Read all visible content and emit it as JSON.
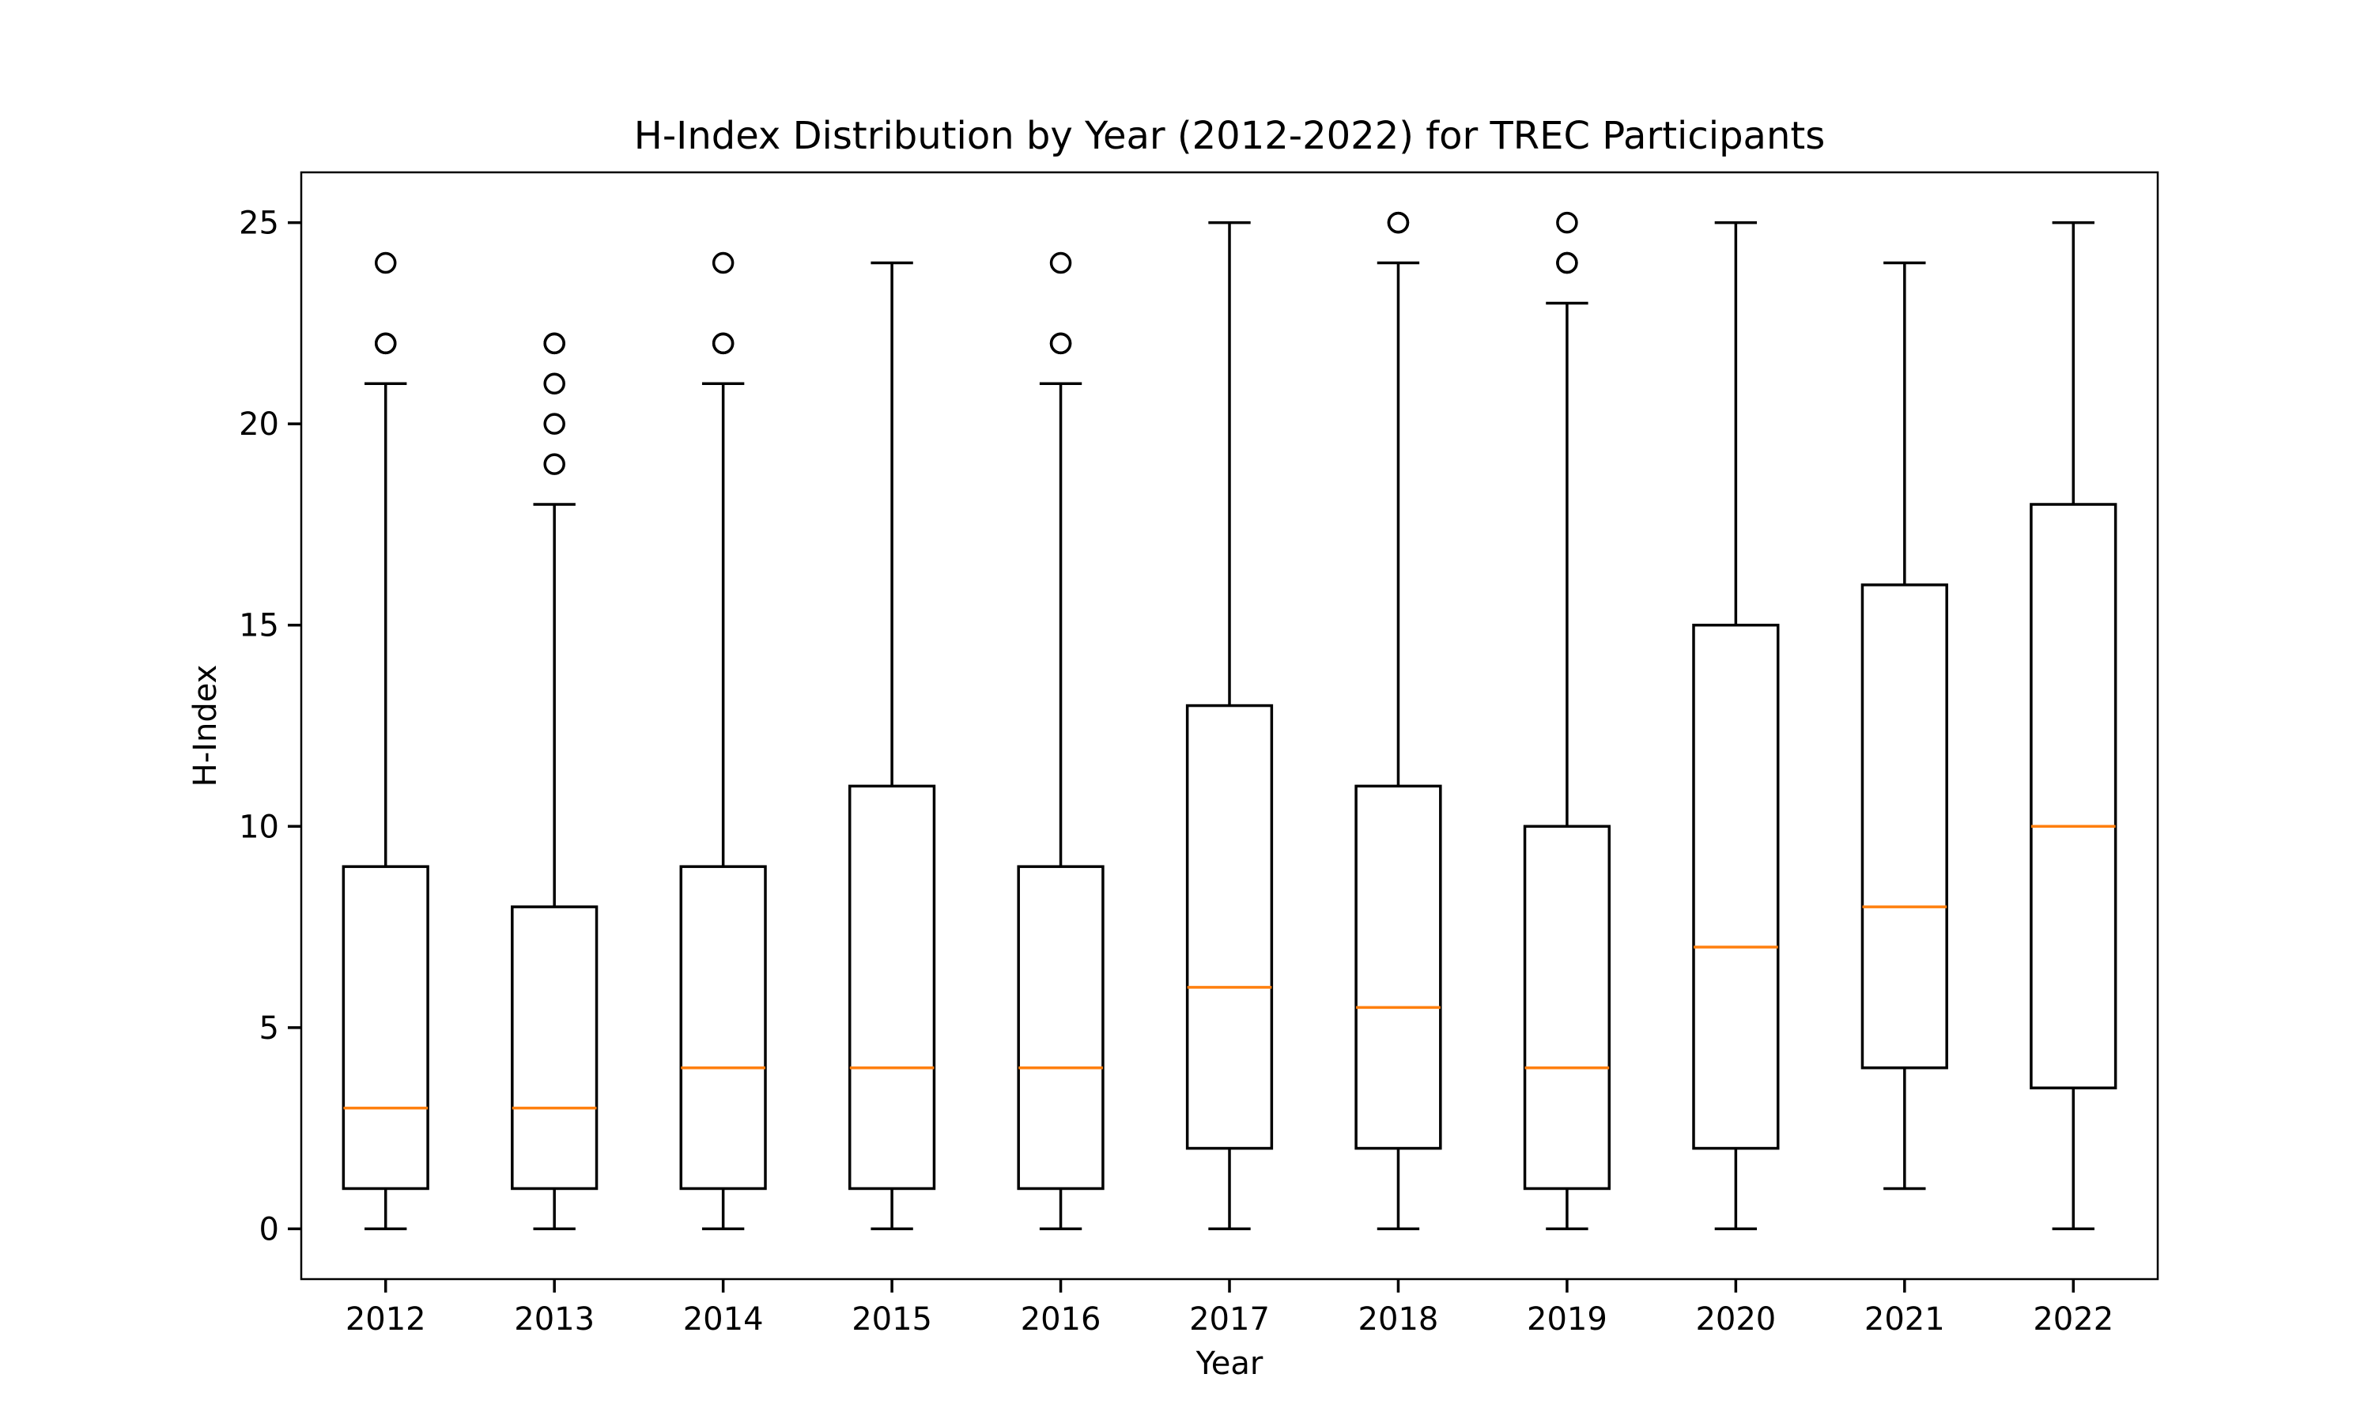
{
  "chart_data": {
    "type": "boxplot",
    "title": "H-Index Distribution by Year (2012-2022) for TREC Participants",
    "xlabel": "Year",
    "ylabel": "H-Index",
    "ylim": [
      -1.25,
      26.25
    ],
    "yticks": [
      0,
      5,
      10,
      15,
      20,
      25
    ],
    "ytick_labels": [
      "0",
      "5",
      "10",
      "15",
      "20",
      "25"
    ],
    "grid": false,
    "colors": {
      "box": "#000000",
      "median": "#ff7f0e"
    },
    "categories": [
      "2012",
      "2013",
      "2014",
      "2015",
      "2016",
      "2017",
      "2018",
      "2019",
      "2020",
      "2021",
      "2022"
    ],
    "boxes": [
      {
        "category": "2012",
        "whisker_low": 0,
        "q1": 1,
        "median": 3,
        "q3": 9,
        "whisker_high": 21,
        "outliers": [
          22,
          22,
          24
        ]
      },
      {
        "category": "2013",
        "whisker_low": 0,
        "q1": 1,
        "median": 3,
        "q3": 8,
        "whisker_high": 18,
        "outliers": [
          19,
          20,
          21,
          22,
          22
        ]
      },
      {
        "category": "2014",
        "whisker_low": 0,
        "q1": 1,
        "median": 4,
        "q3": 9,
        "whisker_high": 21,
        "outliers": [
          22,
          22,
          24
        ]
      },
      {
        "category": "2015",
        "whisker_low": 0,
        "q1": 1,
        "median": 4,
        "q3": 11,
        "whisker_high": 24,
        "outliers": []
      },
      {
        "category": "2016",
        "whisker_low": 0,
        "q1": 1,
        "median": 4,
        "q3": 9,
        "whisker_high": 21,
        "outliers": [
          22,
          22,
          24
        ]
      },
      {
        "category": "2017",
        "whisker_low": 0,
        "q1": 2,
        "median": 6,
        "q3": 13,
        "whisker_high": 25,
        "outliers": []
      },
      {
        "category": "2018",
        "whisker_low": 0,
        "q1": 2,
        "median": 5.5,
        "q3": 11,
        "whisker_high": 24,
        "outliers": [
          25,
          25
        ]
      },
      {
        "category": "2019",
        "whisker_low": 0,
        "q1": 1,
        "median": 4,
        "q3": 10,
        "whisker_high": 23,
        "outliers": [
          24,
          24,
          25
        ]
      },
      {
        "category": "2020",
        "whisker_low": 0,
        "q1": 2,
        "median": 7,
        "q3": 15,
        "whisker_high": 25,
        "outliers": []
      },
      {
        "category": "2021",
        "whisker_low": 1,
        "q1": 4,
        "median": 8,
        "q3": 16,
        "whisker_high": 24,
        "outliers": []
      },
      {
        "category": "2022",
        "whisker_low": 0,
        "q1": 3.5,
        "median": 10,
        "q3": 18,
        "whisker_high": 25,
        "outliers": []
      }
    ]
  }
}
